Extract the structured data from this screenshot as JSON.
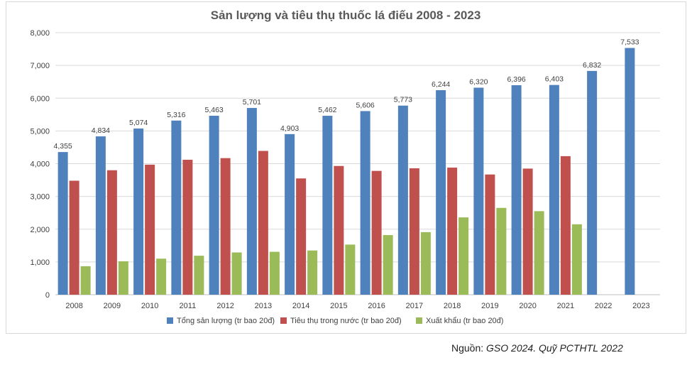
{
  "chart_data": {
    "type": "bar",
    "title": "Sản lượng và tiêu thụ thuốc lá điếu 2008 - 2023",
    "categories": [
      "2008",
      "2009",
      "2010",
      "2011",
      "2012",
      "2013",
      "2014",
      "2015",
      "2016",
      "2017",
      "2018",
      "2019",
      "2020",
      "2021",
      "2022",
      "2023"
    ],
    "series": [
      {
        "name": "Tổng sản lượng (tr bao 20đ)",
        "color": "#4f81bd",
        "values": [
          4355,
          4834,
          5074,
          5316,
          5463,
          5701,
          4903,
          5462,
          5606,
          5773,
          6244,
          6320,
          6396,
          6403,
          6832,
          7533
        ],
        "labels": [
          "4,355",
          "4,834",
          "5,074",
          "5,316",
          "5,463",
          "5,701",
          "4,903",
          "5,462",
          "5,606",
          "5,773",
          "6,244",
          "6,320",
          "6,396",
          "6,403",
          "6,832",
          "7,533"
        ]
      },
      {
        "name": "Tiêu thụ trong nước (tr bao 20đ)",
        "color": "#c0504d",
        "values": [
          3480,
          3800,
          3970,
          4120,
          4170,
          4390,
          3550,
          3930,
          3780,
          3860,
          3880,
          3670,
          3850,
          4230,
          null,
          null
        ]
      },
      {
        "name": "Xuất khẩu (tr bao 20đ)",
        "color": "#9bbb59",
        "values": [
          870,
          1020,
          1100,
          1190,
          1290,
          1310,
          1350,
          1530,
          1820,
          1910,
          2360,
          2650,
          2550,
          2150,
          null,
          null
        ]
      }
    ],
    "yticks": [
      "0",
      "1,000",
      "2,000",
      "3,000",
      "4,000",
      "5,000",
      "6,000",
      "7,000",
      "8,000"
    ],
    "ylim": [
      0,
      8000
    ],
    "grid": true,
    "legend_position": "bottom"
  },
  "source": {
    "prefix": "Nguồn: ",
    "text": "GSO 2024. Quỹ PCTHTL 2022"
  }
}
